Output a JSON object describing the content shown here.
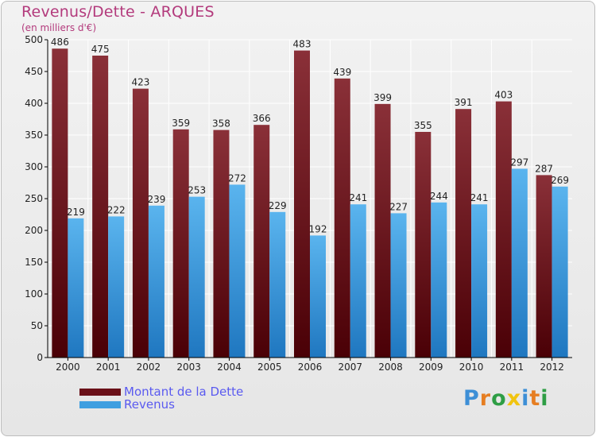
{
  "header": {
    "title": "Revenus/Dette - ARQUES",
    "subtitle": "(en milliers d'€)"
  },
  "logo": {
    "text": "Proxiti",
    "letter_colors": [
      "#3d8fd6",
      "#e67e22",
      "#2e9e45",
      "#f1c40f",
      "#3d8fd6",
      "#e67e22",
      "#2e9e45"
    ]
  },
  "colors": {
    "dette": "#7a1f26",
    "revenus": "#3f9fe0",
    "grid": "#ffffff",
    "axis": "#000000",
    "text": "#222222"
  },
  "legend": {
    "items": [
      {
        "label": "Montant de la Dette",
        "color": "#6a1018"
      },
      {
        "label": "Revenus",
        "color": "#3f9fe0"
      }
    ]
  },
  "chart_data": {
    "type": "bar",
    "title": "Revenus/Dette - ARQUES",
    "subtitle": "(en milliers d'€)",
    "categories": [
      "2000",
      "2001",
      "2002",
      "2003",
      "2004",
      "2005",
      "2006",
      "2007",
      "2008",
      "2009",
      "2010",
      "2011",
      "2012"
    ],
    "series": [
      {
        "name": "Montant de la Dette",
        "values": [
          486,
          475,
          423,
          359,
          358,
          366,
          483,
          439,
          399,
          355,
          391,
          403,
          287
        ]
      },
      {
        "name": "Revenus",
        "values": [
          219,
          222,
          239,
          253,
          272,
          229,
          192,
          241,
          227,
          244,
          241,
          297,
          269
        ]
      }
    ],
    "ylim": [
      0,
      500
    ],
    "yticks": [
      0,
      50,
      100,
      150,
      200,
      250,
      300,
      350,
      400,
      450,
      500
    ],
    "grid": true,
    "legend_position": "bottom-left"
  }
}
